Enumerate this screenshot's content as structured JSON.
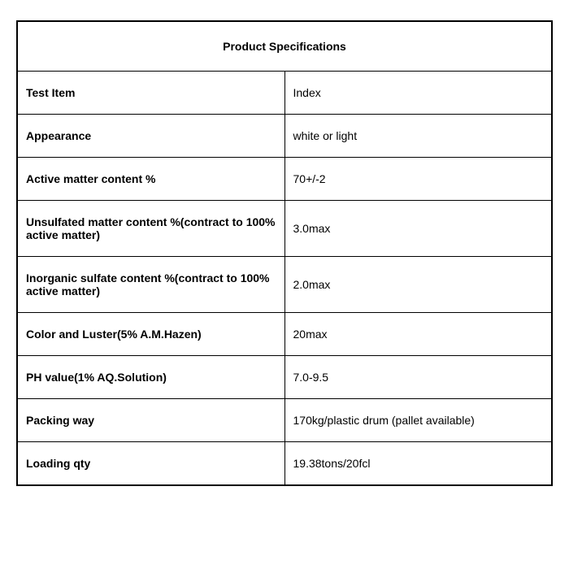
{
  "table": {
    "title": "Product Specifications",
    "title_fontsize": 15,
    "label_fontsize": 14,
    "value_fontsize": 14,
    "border_color": "#000000",
    "background_color": "#ffffff",
    "text_color": "#000000",
    "label_col_width_pct": 50,
    "value_col_width_pct": 50,
    "rows": [
      {
        "label": "Test Item",
        "value": "Index"
      },
      {
        "label": "Appearance",
        "value": "white or light"
      },
      {
        "label": "Active matter content %",
        "value": "70+/-2"
      },
      {
        "label": "Unsulfated matter content %(contract to 100% active matter)",
        "value": "3.0max"
      },
      {
        "label": "Inorganic sulfate content %(contract to 100% active matter)",
        "value": "2.0max"
      },
      {
        "label": "Color and Luster(5% A.M.Hazen)",
        "value": "20max"
      },
      {
        "label": "PH value(1% AQ.Solution)",
        "value": "7.0-9.5"
      },
      {
        "label": "Packing way",
        "value": "170kg/plastic drum (pallet available)"
      },
      {
        "label": "Loading qty",
        "value": "19.38tons/20fcl"
      }
    ]
  }
}
